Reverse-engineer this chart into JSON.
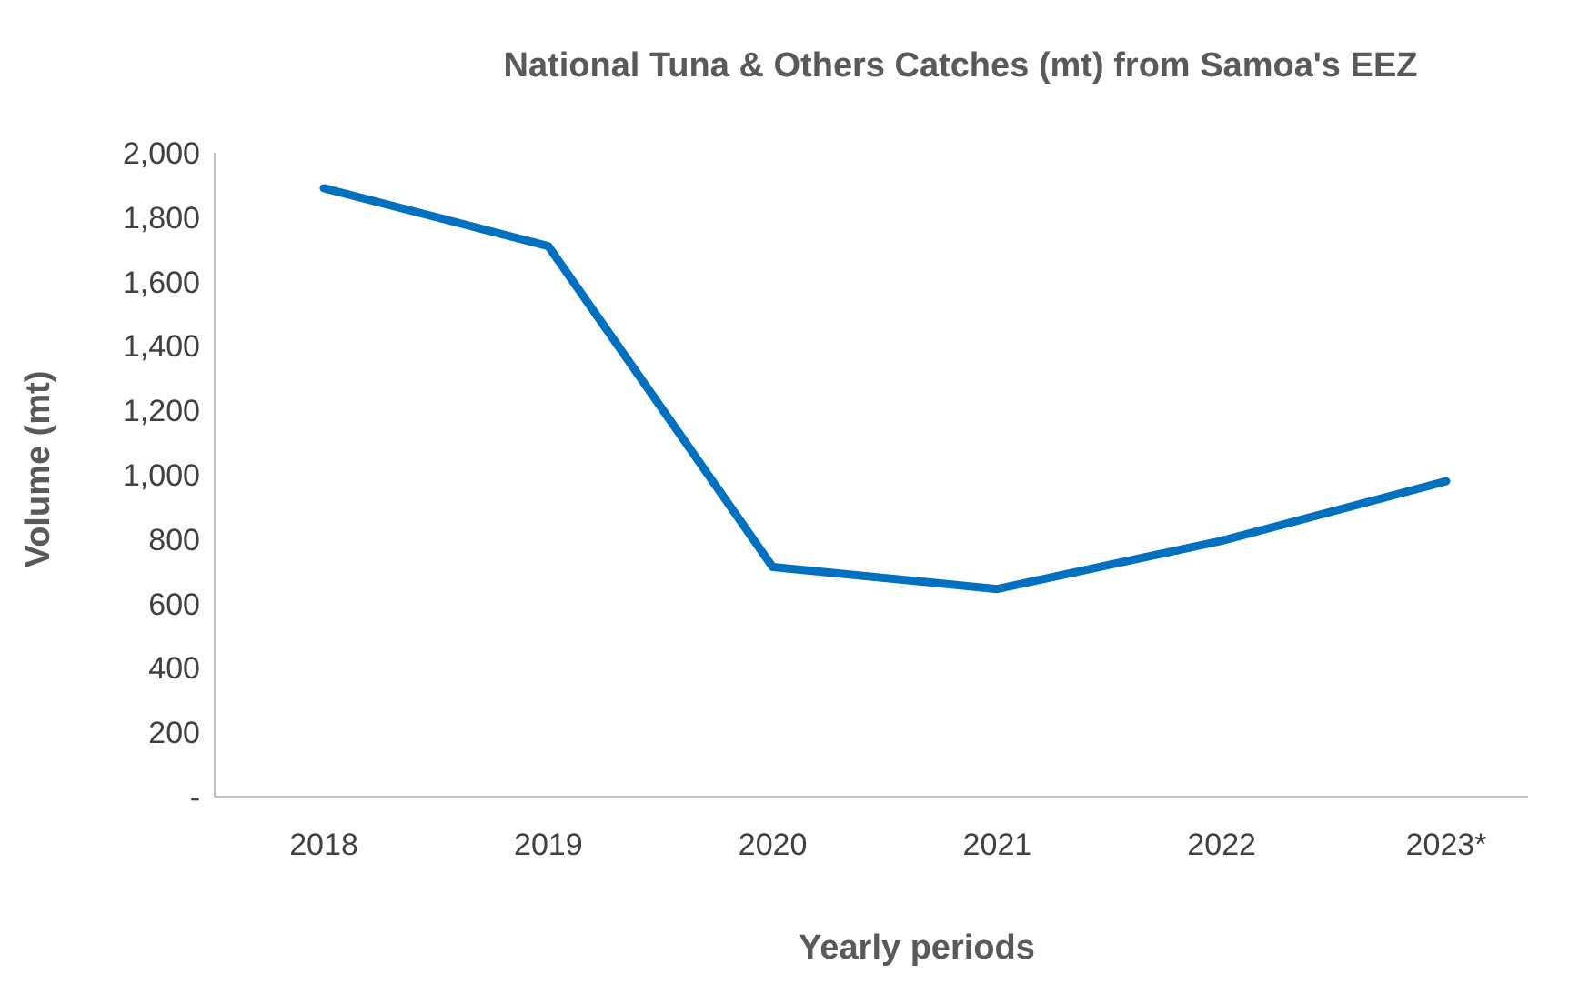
{
  "chart_data": {
    "type": "line",
    "title": "National Tuna & Others Catches (mt) from Samoa's EEZ",
    "xlabel": "Yearly periods",
    "ylabel": "Volume (mt)",
    "categories": [
      "2018",
      "2019",
      "2020",
      "2021",
      "2022",
      "2023*"
    ],
    "series": [
      {
        "color": "#0070c0",
        "values": [
          1890,
          1710,
          713,
          645,
          795,
          980
        ]
      }
    ],
    "ylim": [
      0,
      2000
    ],
    "yticks": [
      {
        "value": 0,
        "label": "-"
      },
      200,
      400,
      600,
      800,
      {
        "value": 1000,
        "label": "1,000"
      },
      {
        "value": 1200,
        "label": "1,200"
      },
      {
        "value": 1400,
        "label": "1,400"
      },
      {
        "value": 1600,
        "label": "1,600"
      },
      {
        "value": 1800,
        "label": "1,800"
      },
      {
        "value": 2000,
        "label": "2,000"
      }
    ],
    "grid": false,
    "legend": false,
    "marker": "none",
    "line_style": "solid"
  }
}
